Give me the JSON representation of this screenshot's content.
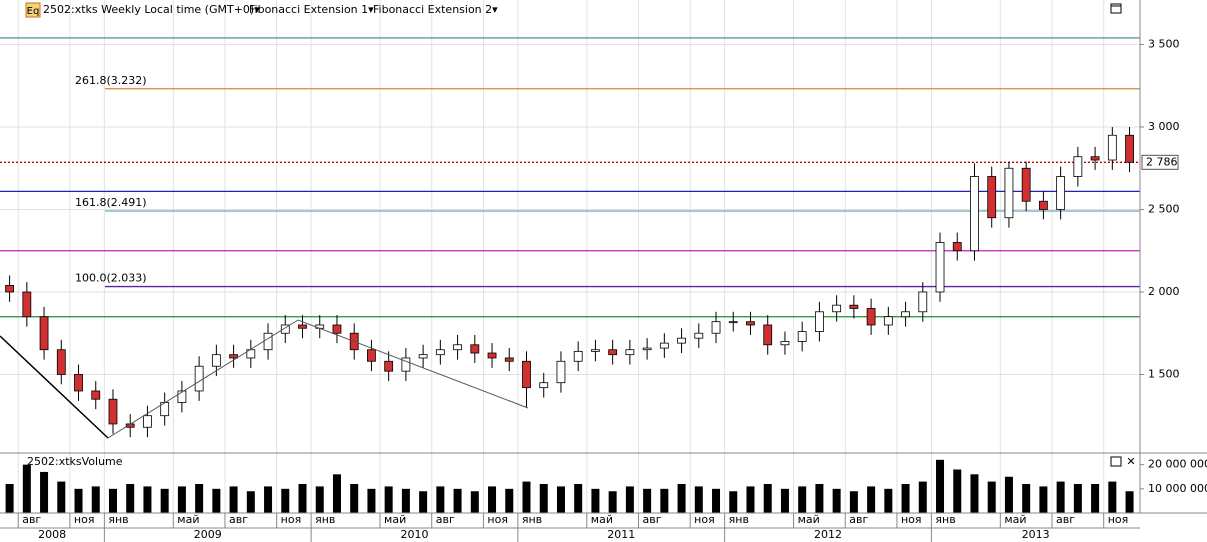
{
  "chart_data": {
    "type": "candlestick",
    "header": "2502:xtks Weekly Local time (GMT+0)▾",
    "header_items": [
      "Fibonacci Extension 1▾",
      "Fibonacci Extension 2▾"
    ],
    "icon": "Eq",
    "x": [
      "2008-07",
      "2008-08",
      "2008-09",
      "2008-10",
      "2008-11",
      "2008-12",
      "2009-01",
      "2009-02",
      "2009-03",
      "2009-04",
      "2009-05",
      "2009-06",
      "2009-07",
      "2009-08",
      "2009-09",
      "2009-10",
      "2009-11",
      "2009-12",
      "2010-01",
      "2010-02",
      "2010-03",
      "2010-04",
      "2010-05",
      "2010-06",
      "2010-07",
      "2010-08",
      "2010-09",
      "2010-10",
      "2010-11",
      "2010-12",
      "2011-01",
      "2011-02",
      "2011-03",
      "2011-04",
      "2011-05",
      "2011-06",
      "2011-07",
      "2011-08",
      "2011-09",
      "2011-10",
      "2011-11",
      "2011-12",
      "2012-01",
      "2012-02",
      "2012-03",
      "2012-04",
      "2012-05",
      "2012-06",
      "2012-07",
      "2012-08",
      "2012-09",
      "2012-10",
      "2012-11",
      "2012-12",
      "2013-01",
      "2013-02",
      "2013-03",
      "2013-04",
      "2013-05",
      "2013-06",
      "2013-07",
      "2013-08",
      "2013-09",
      "2013-10",
      "2013-11",
      "2013-12"
    ],
    "open": [
      2040,
      2000,
      1850,
      1650,
      1500,
      1400,
      1350,
      1200,
      1180,
      1250,
      1330,
      1400,
      1550,
      1620,
      1600,
      1650,
      1750,
      1800,
      1780,
      1800,
      1750,
      1650,
      1580,
      1520,
      1600,
      1620,
      1650,
      1680,
      1630,
      1600,
      1580,
      1420,
      1450,
      1580,
      1640,
      1650,
      1620,
      1650,
      1660,
      1690,
      1720,
      1750,
      1820,
      1820,
      1800,
      1680,
      1700,
      1760,
      1880,
      1920,
      1900,
      1800,
      1850,
      1880,
      2000,
      2300,
      2250,
      2700,
      2450,
      2750,
      2550,
      2500,
      2700,
      2820,
      2800,
      2950
    ],
    "high": [
      2100,
      2060,
      1910,
      1710,
      1560,
      1460,
      1410,
      1260,
      1310,
      1390,
      1460,
      1610,
      1680,
      1680,
      1710,
      1810,
      1860,
      1860,
      1860,
      1860,
      1810,
      1710,
      1640,
      1660,
      1680,
      1710,
      1740,
      1740,
      1690,
      1660,
      1640,
      1510,
      1640,
      1700,
      1710,
      1710,
      1710,
      1720,
      1750,
      1780,
      1810,
      1880,
      1880,
      1880,
      1860,
      1760,
      1820,
      1940,
      1980,
      1980,
      1960,
      1910,
      1940,
      2060,
      2360,
      2360,
      2780,
      2760,
      2790,
      2790,
      2610,
      2760,
      2880,
      2880,
      3000,
      3000
    ],
    "low": [
      1940,
      1790,
      1590,
      1440,
      1340,
      1290,
      1140,
      1120,
      1120,
      1190,
      1270,
      1340,
      1490,
      1540,
      1540,
      1590,
      1690,
      1720,
      1720,
      1690,
      1590,
      1520,
      1460,
      1460,
      1540,
      1560,
      1590,
      1570,
      1540,
      1520,
      1300,
      1360,
      1390,
      1520,
      1580,
      1560,
      1560,
      1590,
      1600,
      1630,
      1660,
      1690,
      1760,
      1740,
      1620,
      1620,
      1640,
      1700,
      1820,
      1840,
      1740,
      1740,
      1790,
      1820,
      1940,
      2190,
      2190,
      2390,
      2390,
      2490,
      2440,
      2440,
      2640,
      2740,
      2740,
      2726
    ],
    "close": [
      2000,
      1850,
      1650,
      1500,
      1400,
      1350,
      1200,
      1180,
      1250,
      1330,
      1400,
      1550,
      1620,
      1600,
      1650,
      1750,
      1800,
      1780,
      1800,
      1750,
      1650,
      1580,
      1520,
      1600,
      1620,
      1650,
      1680,
      1630,
      1600,
      1580,
      1420,
      1450,
      1580,
      1640,
      1650,
      1620,
      1650,
      1660,
      1690,
      1720,
      1750,
      1820,
      1820,
      1800,
      1680,
      1700,
      1760,
      1880,
      1920,
      1900,
      1800,
      1850,
      1880,
      2000,
      2300,
      2250,
      2700,
      2450,
      2750,
      2550,
      2500,
      2700,
      2820,
      2800,
      2950,
      2786
    ],
    "up_color": "#ffffff",
    "down_color": "#d03030",
    "ylim": [
      1030,
      3770
    ],
    "yticks": [
      {
        "value": 1500,
        "label": "1 500"
      },
      {
        "value": 2000,
        "label": "2 000"
      },
      {
        "value": 2500,
        "label": "2 500"
      },
      {
        "value": 3000,
        "label": "3 000"
      },
      {
        "value": 3500,
        "label": "3 500"
      }
    ],
    "grid": true,
    "last_price": {
      "value": 2786,
      "label": "2 786",
      "color": "#c00000"
    },
    "levels": [
      {
        "value": 3540,
        "color": "#5a9aa8"
      },
      {
        "value": 3232,
        "color": "#d08a3c",
        "label": "261.8(3.232)"
      },
      {
        "value": 2610,
        "color": "#2020c0"
      },
      {
        "value": 2491,
        "color": "#6aa8b8",
        "label": "161.8(2.491)"
      },
      {
        "value": 2250,
        "color": "#c020c0"
      },
      {
        "value": 2033,
        "color": "#6020a0",
        "label": "100.0(2.033)"
      },
      {
        "value": 1850,
        "color": "#20902a"
      }
    ],
    "volume": {
      "title": "2502:xtksVolume",
      "color": "#000000",
      "values": [
        12000000,
        20000000,
        17000000,
        13000000,
        10000000,
        11000000,
        10000000,
        12000000,
        11000000,
        10000000,
        11000000,
        12000000,
        10000000,
        11000000,
        9000000,
        11000000,
        10000000,
        12000000,
        11000000,
        16000000,
        12000000,
        10000000,
        11000000,
        10000000,
        9000000,
        11000000,
        10000000,
        9000000,
        11000000,
        10000000,
        13000000,
        12000000,
        11000000,
        12000000,
        10000000,
        9000000,
        11000000,
        10000000,
        10000000,
        12000000,
        11000000,
        10000000,
        9000000,
        11000000,
        12000000,
        10000000,
        11000000,
        12000000,
        10000000,
        9000000,
        11000000,
        10000000,
        12000000,
        13000000,
        22000000,
        18000000,
        16000000,
        13000000,
        15000000,
        12000000,
        11000000,
        13000000,
        12000000,
        12000000,
        13000000,
        9000000
      ],
      "ylim": [
        0,
        24000000
      ],
      "yticks": [
        {
          "value": 10000000,
          "label": "10 000 000"
        },
        {
          "value": 20000000,
          "label": "20 000 000"
        }
      ]
    },
    "month_ticks": [
      {
        "value": "2008-08",
        "label": "авг"
      },
      {
        "value": "2008-11",
        "label": "ноя"
      },
      {
        "value": "2009-01",
        "label": "янв"
      },
      {
        "value": "2009-05",
        "label": "май"
      },
      {
        "value": "2009-08",
        "label": "авг"
      },
      {
        "value": "2009-11",
        "label": "ноя"
      },
      {
        "value": "2010-01",
        "label": "янв"
      },
      {
        "value": "2010-05",
        "label": "май"
      },
      {
        "value": "2010-08",
        "label": "авг"
      },
      {
        "value": "2010-11",
        "label": "ноя"
      },
      {
        "value": "2011-01",
        "label": "янв"
      },
      {
        "value": "2011-05",
        "label": "май"
      },
      {
        "value": "2011-08",
        "label": "авг"
      },
      {
        "value": "2011-11",
        "label": "ноя"
      },
      {
        "value": "2012-01",
        "label": "янв"
      },
      {
        "value": "2012-05",
        "label": "май"
      },
      {
        "value": "2012-08",
        "label": "авг"
      },
      {
        "value": "2012-11",
        "label": "ноя"
      },
      {
        "value": "2013-01",
        "label": "янв"
      },
      {
        "value": "2013-05",
        "label": "май"
      },
      {
        "value": "2013-08",
        "label": "авг"
      },
      {
        "value": "2013-11",
        "label": "ноя"
      }
    ],
    "years": [
      "2008",
      "2009",
      "2010",
      "2011",
      "2012",
      "2013"
    ]
  }
}
